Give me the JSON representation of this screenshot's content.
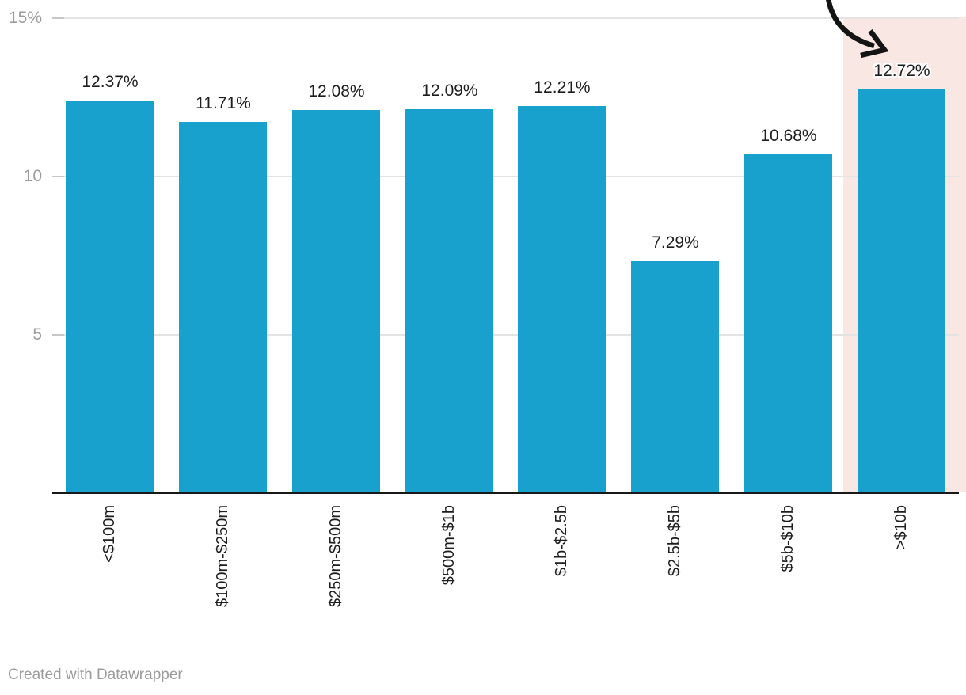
{
  "chart_data": {
    "type": "bar",
    "title": "",
    "xlabel": "",
    "ylabel": "",
    "categories": [
      "<$100m",
      "$100m-$250m",
      "$250m-$500m",
      "$500m-$1b",
      "$1b-$2.5b",
      "$2.5b-$5b",
      "$5b-$10b",
      ">$10b"
    ],
    "values": [
      12.37,
      11.71,
      12.08,
      12.09,
      12.21,
      7.29,
      10.68,
      12.72
    ],
    "value_labels": [
      "12.37%",
      "11.71%",
      "12.08%",
      "12.09%",
      "12.21%",
      "7.29%",
      "10.68%",
      "12.72%"
    ],
    "ylim": [
      0,
      15
    ],
    "yticks": [
      {
        "value": 15,
        "label": "15%"
      },
      {
        "value": 10,
        "label": "10"
      },
      {
        "value": 5,
        "label": "5"
      }
    ],
    "grid": true,
    "legend_position": "none",
    "highlighted_category": ">$10b",
    "highlighted_index": 7,
    "annotation": {
      "type": "arrow",
      "points_to": ">$10b"
    },
    "colors": {
      "bar": "#18a1cd",
      "highlight_background": "#f9e7e4",
      "gridline": "#e3e3e3",
      "grid_tick": "#c6c6c6",
      "axis_line": "#18181a",
      "value_label": "#1d1d1d",
      "category_label": "#1d1d1d",
      "ytick_label": "#9c9c9c",
      "arrow": "#141414",
      "credit": "#9b9b9b"
    }
  },
  "footer": {
    "credit": "Created with Datawrapper"
  }
}
